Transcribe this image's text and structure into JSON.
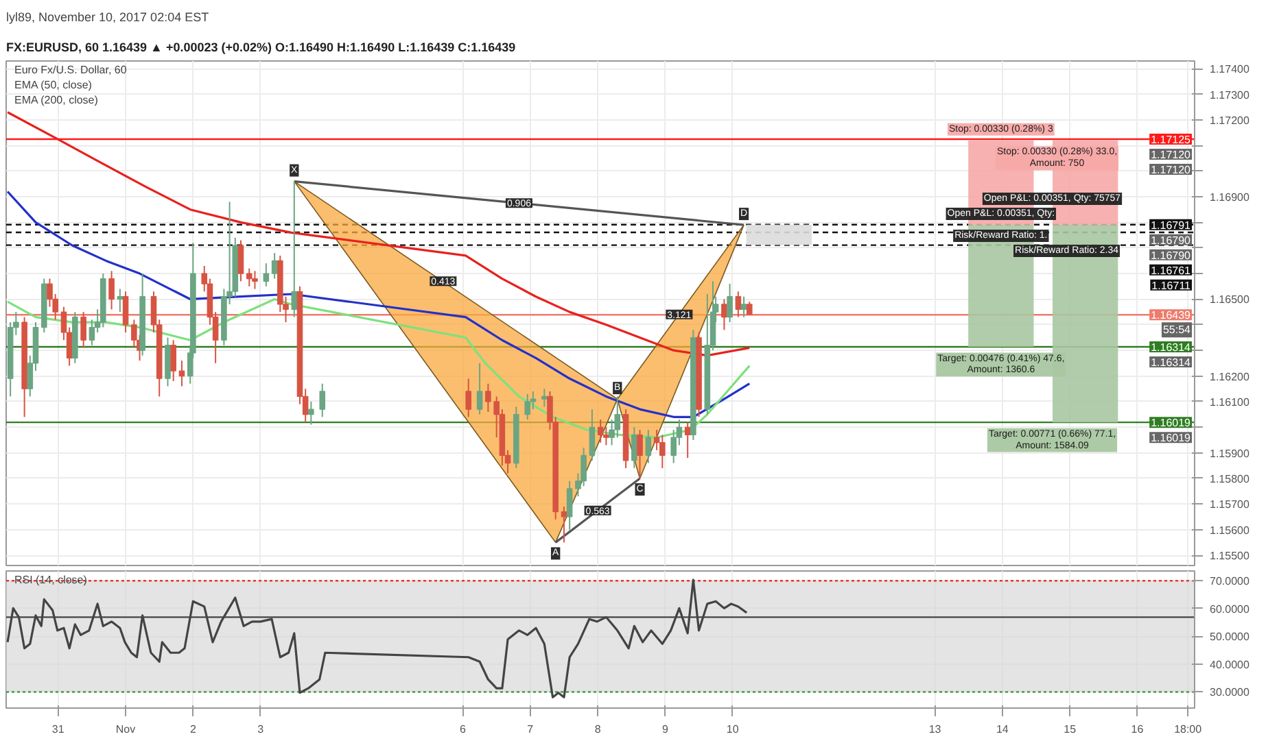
{
  "chart_data": [
    {
      "type": "candlestick",
      "title": "lyl89, November 10, 2017 02:04 EST",
      "subtitle": "FX:EURUSD, 60 1.16439 ▲ +0.00023 (+0.02%) O:1.16490 H:1.16490 L:1.16439 C:1.16439",
      "x": [
        "2017-10-30T07:00",
        "2017-10-30T09:00",
        "2017-10-30T12:00",
        "2017-10-30T14:00",
        "2017-10-30T16:00",
        "2017-10-30T19:00",
        "2017-10-30T21:00",
        "2017-10-30T23:00",
        "2017-10-31T02:00",
        "2017-10-31T04:00",
        "2017-10-31T06:00",
        "2017-10-31T09:00",
        "2017-10-31T12:00",
        "2017-10-31T14:00",
        "2017-10-31T16:00",
        "2017-10-31T19:00",
        "2017-10-31T22:00",
        "2017-11-01T00:00",
        "2017-11-01T03:00",
        "2017-11-01T05:00",
        "2017-11-01T06:00",
        "2017-11-01T10:00",
        "2017-11-01T12:00",
        "2017-11-01T15:00",
        "2017-11-01T17:00",
        "2017-11-01T20:00",
        "2017-11-01T23:00",
        "2017-11-02T00:00",
        "2017-11-02T04:00",
        "2017-11-02T06:00",
        "2017-11-02T08:00",
        "2017-11-02T11:00",
        "2017-11-02T13:00",
        "2017-11-02T15:00",
        "2017-11-02T17:00",
        "2017-11-02T20:00",
        "2017-11-02T22:00",
        "2017-11-03T02:00",
        "2017-11-03T05:00",
        "2017-11-03T07:00",
        "2017-11-03T09:00",
        "2017-11-03T12:00",
        "2017-11-03T14:00",
        "2017-11-03T16:00",
        "2017-11-03T18:00",
        "2017-11-03T22:00",
        "2017-11-06T02:00",
        "2017-11-06T06:00",
        "2017-11-06T09:00",
        "2017-11-06T12:00",
        "2017-11-06T14:00",
        "2017-11-06T16:00",
        "2017-11-06T19:00",
        "2017-11-06T23:00",
        "2017-11-07T01:00",
        "2017-11-07T05:00",
        "2017-11-07T07:00",
        "2017-11-07T09:00",
        "2017-11-07T12:00",
        "2017-11-07T14:00",
        "2017-11-07T17:00",
        "2017-11-07T19:00",
        "2017-11-07T22:00",
        "2017-11-08T01:00",
        "2017-11-08T03:00",
        "2017-11-08T05:00",
        "2017-11-08T07:00",
        "2017-11-08T10:00",
        "2017-11-08T13:00",
        "2017-11-08T15:00",
        "2017-11-08T18:00",
        "2017-11-08T21:00",
        "2017-11-08T23:00",
        "2017-11-09T03:00",
        "2017-11-09T05:00",
        "2017-11-09T08:00",
        "2017-11-09T10:00",
        "2017-11-09T12:00",
        "2017-11-09T15:00",
        "2017-11-09T17:00",
        "2017-11-09T18:00",
        "2017-11-09T21:00",
        "2017-11-09T23:00",
        "2017-11-10T02:00",
        "2017-11-10T04:00",
        "2017-11-10T06:00"
      ],
      "ohlc": [
        [
          1.1619,
          1.1641,
          1.1612,
          1.1639
        ],
        [
          1.1639,
          1.1645,
          1.1636,
          1.1641
        ],
        [
          1.1641,
          1.1643,
          1.1604,
          1.1615
        ],
        [
          1.1615,
          1.1628,
          1.1612,
          1.1625
        ],
        [
          1.1625,
          1.1641,
          1.1622,
          1.1639
        ],
        [
          1.1639,
          1.1658,
          1.1637,
          1.1656
        ],
        [
          1.1656,
          1.1658,
          1.1647,
          1.165
        ],
        [
          1.165,
          1.1652,
          1.1642,
          1.1645
        ],
        [
          1.1645,
          1.1647,
          1.1634,
          1.1637
        ],
        [
          1.1637,
          1.1639,
          1.1624,
          1.1627
        ],
        [
          1.1627,
          1.1645,
          1.1625,
          1.1643
        ],
        [
          1.1643,
          1.1645,
          1.1631,
          1.1634
        ],
        [
          1.1634,
          1.1642,
          1.1632,
          1.1639
        ],
        [
          1.1639,
          1.1646,
          1.1637,
          1.1641
        ],
        [
          1.1641,
          1.166,
          1.1639,
          1.1658
        ],
        [
          1.1658,
          1.1661,
          1.1646,
          1.165
        ],
        [
          1.165,
          1.1654,
          1.1645,
          1.1651
        ],
        [
          1.1651,
          1.1653,
          1.1637,
          1.164
        ],
        [
          1.164,
          1.1642,
          1.1631,
          1.1634
        ],
        [
          1.1634,
          1.1636,
          1.1626,
          1.163
        ],
        [
          1.163,
          1.166,
          1.1628,
          1.1651
        ],
        [
          1.1651,
          1.1653,
          1.1637,
          1.164
        ],
        [
          1.164,
          1.1642,
          1.1612,
          1.1619
        ],
        [
          1.1619,
          1.1635,
          1.1616,
          1.1632
        ],
        [
          1.1632,
          1.1634,
          1.1618,
          1.1622
        ],
        [
          1.1622,
          1.1626,
          1.1616,
          1.162
        ],
        [
          1.162,
          1.1632,
          1.1617,
          1.1629
        ],
        [
          1.1629,
          1.1672,
          1.1627,
          1.166
        ],
        [
          1.166,
          1.1663,
          1.1653,
          1.1656
        ],
        [
          1.1656,
          1.1658,
          1.164,
          1.1643
        ],
        [
          1.1643,
          1.1645,
          1.1625,
          1.1634
        ],
        [
          1.1634,
          1.1654,
          1.1632,
          1.1651
        ],
        [
          1.1651,
          1.1688,
          1.1648,
          1.1653
        ],
        [
          1.1653,
          1.1674,
          1.1651,
          1.1671
        ],
        [
          1.1671,
          1.1673,
          1.1657,
          1.166
        ],
        [
          1.166,
          1.1662,
          1.1655,
          1.1658
        ],
        [
          1.1658,
          1.1661,
          1.1654,
          1.1657
        ],
        [
          1.1657,
          1.1664,
          1.1655,
          1.166
        ],
        [
          1.166,
          1.1668,
          1.1658,
          1.1665
        ],
        [
          1.1665,
          1.1667,
          1.1645,
          1.1648
        ],
        [
          1.1648,
          1.1651,
          1.1641,
          1.1646
        ],
        [
          1.1646,
          1.1696,
          1.1643,
          1.1653
        ],
        [
          1.1653,
          1.1655,
          1.1609,
          1.1612
        ],
        [
          1.1612,
          1.1615,
          1.1602,
          1.1605
        ],
        [
          1.1605,
          1.161,
          1.1601,
          1.1607
        ],
        [
          1.1607,
          1.1617,
          1.1604,
          1.1614
        ],
        [
          1.1614,
          1.1619,
          1.1604,
          1.1607
        ],
        [
          1.1607,
          1.1625,
          1.1605,
          1.1614
        ],
        [
          1.1614,
          1.1617,
          1.1606,
          1.161
        ],
        [
          1.161,
          1.1612,
          1.1596,
          1.1605
        ],
        [
          1.1605,
          1.1607,
          1.1585,
          1.1589
        ],
        [
          1.1589,
          1.1591,
          1.1582,
          1.1586
        ],
        [
          1.1586,
          1.1608,
          1.1584,
          1.1605
        ],
        [
          1.1605,
          1.1613,
          1.1603,
          1.161
        ],
        [
          1.161,
          1.1614,
          1.1607,
          1.1611
        ],
        [
          1.1611,
          1.1615,
          1.1608,
          1.1612
        ],
        [
          1.1612,
          1.1614,
          1.1599,
          1.1602
        ],
        [
          1.1602,
          1.1604,
          1.1564,
          1.1567
        ],
        [
          1.1567,
          1.1569,
          1.1555,
          1.1565
        ],
        [
          1.1565,
          1.1579,
          1.156,
          1.1576
        ],
        [
          1.1576,
          1.1582,
          1.1573,
          1.1579
        ],
        [
          1.1579,
          1.1592,
          1.1577,
          1.1589
        ],
        [
          1.1589,
          1.1607,
          1.1587,
          1.16
        ],
        [
          1.16,
          1.1603,
          1.1594,
          1.1597
        ],
        [
          1.1597,
          1.16,
          1.1593,
          1.1596
        ],
        [
          1.1596,
          1.1603,
          1.1593,
          1.1599
        ],
        [
          1.1599,
          1.1612,
          1.1596,
          1.1605
        ],
        [
          1.1605,
          1.1607,
          1.1584,
          1.1587
        ],
        [
          1.1587,
          1.16,
          1.1584,
          1.1597
        ],
        [
          1.1597,
          1.1599,
          1.158,
          1.1589
        ],
        [
          1.1589,
          1.1599,
          1.1586,
          1.1596
        ],
        [
          1.1596,
          1.1599,
          1.1591,
          1.1594
        ],
        [
          1.1594,
          1.1597,
          1.1584,
          1.1589
        ],
        [
          1.1589,
          1.1599,
          1.1586,
          1.1596
        ],
        [
          1.1596,
          1.1603,
          1.1593,
          1.16
        ],
        [
          1.16,
          1.1602,
          1.1588,
          1.1597
        ],
        [
          1.1597,
          1.1638,
          1.1595,
          1.1635
        ],
        [
          1.1635,
          1.1637,
          1.1604,
          1.1607
        ],
        [
          1.1607,
          1.1652,
          1.1605,
          1.1632
        ],
        [
          1.1632,
          1.1657,
          1.163,
          1.1645
        ],
        [
          1.1645,
          1.1651,
          1.1641,
          1.1648
        ],
        [
          1.1648,
          1.165,
          1.1638,
          1.1643
        ],
        [
          1.1643,
          1.1656,
          1.1641,
          1.1651
        ],
        [
          1.1651,
          1.1653,
          1.1643,
          1.1646
        ],
        [
          1.1646,
          1.1651,
          1.1643,
          1.1648
        ],
        [
          1.1648,
          1.1649,
          1.1644,
          1.1644
        ]
      ],
      "colors": [
        "#6ba583",
        "#6ba583",
        "#d75442",
        "#6ba583",
        "#6ba583",
        "#6ba583",
        "#d75442",
        "#d75442",
        "#d75442",
        "#d75442",
        "#6ba583",
        "#d75442",
        "#6ba583",
        "#6ba583",
        "#6ba583",
        "#d75442",
        "#6ba583",
        "#d75442",
        "#d75442",
        "#d75442",
        "#6ba583",
        "#d75442",
        "#d75442",
        "#6ba583",
        "#d75442",
        "#d75442",
        "#6ba583",
        "#6ba583",
        "#d75442",
        "#d75442",
        "#d75442",
        "#6ba583",
        "#6ba583",
        "#6ba583",
        "#d75442",
        "#d75442",
        "#d75442",
        "#6ba583",
        "#6ba583",
        "#d75442",
        "#d75442",
        "#6ba583",
        "#d75442",
        "#d75442",
        "#6ba583",
        "#6ba583",
        "#d75442",
        "#6ba583",
        "#d75442",
        "#d75442",
        "#d75442",
        "#d75442",
        "#6ba583",
        "#6ba583",
        "#6ba583",
        "#6ba583",
        "#d75442",
        "#d75442",
        "#d75442",
        "#6ba583",
        "#6ba583",
        "#6ba583",
        "#6ba583",
        "#d75442",
        "#d75442",
        "#6ba583",
        "#6ba583",
        "#d75442",
        "#6ba583",
        "#d75442",
        "#6ba583",
        "#d75442",
        "#d75442",
        "#6ba583",
        "#6ba583",
        "#d75442",
        "#6ba583",
        "#d75442",
        "#6ba583",
        "#6ba583",
        "#6ba583",
        "#d75442",
        "#6ba583",
        "#d75442",
        "#6ba583",
        "#d75442"
      ],
      "series": [
        {
          "type": "bar",
          "color": "#f7a9a8",
          "x": [
            "2017-11-13T23:30",
            "2017-11-15T05:30"
          ],
          "base": [
            1.1679,
            1.1679
          ],
          "values": [
            0.0033,
            0.0033
          ],
          "value_labels": [
            "Stop: 0.00330 (0.28%) 3",
            "Stop: 0.00330 (0.28%) 33.0, Amount: 750"
          ]
        },
        {
          "type": "bar",
          "color": "#a9c7a1",
          "x": [
            "2017-11-13T23:30",
            "2017-11-15T05:30"
          ],
          "base": [
            1.16314,
            1.16019
          ],
          "values": [
            0.00476,
            0.00771
          ],
          "value_labels": [
            "Target: 0.00476 (0.41%) 47.6, Amount: 1360.6",
            "Target: 0.00771 (0.66%) 77.1, Amount: 1584.09"
          ]
        },
        {
          "type": "bar",
          "color": "#dcdcdc",
          "x": [
            "2017-11-10T16:30"
          ],
          "base": [
            1.16711
          ],
          "values": [
            0.0008
          ]
        },
        {
          "type": "area",
          "color": "#f9a83e",
          "x": [
            "2017-11-03T12:00",
            "2017-11-07T09:00",
            "2017-11-08T07:00"
          ],
          "values": [
            1.1696,
            1.1555,
            1.1611
          ]
        },
        {
          "type": "area",
          "color": "#f9a83e",
          "x": [
            "2017-11-08T07:00",
            "2017-11-08T15:00",
            "2017-11-10T04:00"
          ],
          "values": [
            1.1611,
            1.158,
            1.1679
          ]
        },
        {
          "type": "line",
          "color": "#555555",
          "x": [
            "2017-11-03T12:00",
            "2017-11-10T04:00"
          ],
          "values": [
            1.1696,
            1.1679
          ]
        },
        {
          "type": "line",
          "color": "#555555",
          "x": [
            "2017-11-07T09:00",
            "2017-11-08T15:00"
          ],
          "values": [
            1.1555,
            1.158
          ]
        },
        {
          "type": "line",
          "color": "#e8211d",
          "x": [
            "2017-10-30T06:00",
            "2017-10-30T23:00",
            "2017-10-31T14:00",
            "2017-11-01T07:00",
            "2017-11-01T23:00",
            "2017-11-02T17:00",
            "2017-11-03T11:00",
            "2017-11-06T01:00",
            "2017-11-06T14:00",
            "2017-11-07T02:00",
            "2017-11-07T14:00",
            "2017-11-08T03:00",
            "2017-11-08T15:00",
            "2017-11-09T03:00",
            "2017-11-09T15:00",
            "2017-11-10T06:00"
          ],
          "values": [
            1.1723,
            1.1713,
            1.1704,
            1.1694,
            1.1685,
            1.168,
            1.1676,
            1.1667,
            1.1658,
            1.1651,
            1.1645,
            1.164,
            1.1635,
            1.163,
            1.1628,
            1.1631
          ]
        },
        {
          "type": "line",
          "color": "#2231c9",
          "x": [
            "2017-10-30T06:00",
            "2017-10-30T16:00",
            "2017-10-31T05:00",
            "2017-10-31T17:00",
            "2017-11-01T05:00",
            "2017-11-01T23:00",
            "2017-11-02T17:00",
            "2017-11-03T11:00",
            "2017-11-06T01:00",
            "2017-11-06T14:00",
            "2017-11-07T02:00",
            "2017-11-07T14:00",
            "2017-11-08T03:00",
            "2017-11-08T15:00",
            "2017-11-09T03:00",
            "2017-11-09T10:00",
            "2017-11-09T21:00",
            "2017-11-10T06:00"
          ],
          "values": [
            1.1692,
            1.168,
            1.1671,
            1.1665,
            1.166,
            1.165,
            1.1651,
            1.1652,
            1.1643,
            1.1634,
            1.1627,
            1.1619,
            1.1612,
            1.1607,
            1.1604,
            1.1604,
            1.1611,
            1.1617
          ]
        },
        {
          "type": "line",
          "color": "#7ee07e",
          "x": [
            "2017-10-30T06:00",
            "2017-10-30T16:00",
            "2017-10-31T05:00",
            "2017-10-31T17:00",
            "2017-11-01T05:00",
            "2017-11-01T23:00",
            "2017-11-02T11:00",
            "2017-11-03T05:00",
            "2017-11-03T11:00",
            "2017-11-06T01:00",
            "2017-11-06T08:00",
            "2017-11-06T20:00",
            "2017-11-07T08:00",
            "2017-11-07T20:00",
            "2017-11-08T08:00",
            "2017-11-08T21:00",
            "2017-11-09T09:00",
            "2017-11-09T15:00",
            "2017-11-10T06:00"
          ],
          "values": [
            1.1649,
            1.1643,
            1.1641,
            1.1641,
            1.1639,
            1.1634,
            1.1641,
            1.165,
            1.1648,
            1.1635,
            1.1625,
            1.1612,
            1.1604,
            1.1599,
            1.1597,
            1.1596,
            1.1599,
            1.1605,
            1.1624
          ]
        }
      ],
      "xlim": [
        "2017-10-30T05:30",
        "2017-11-16T20:24"
      ],
      "ylim": [
        1.1546,
        1.1743
      ],
      "xticks": [
        {
          "value": "2017-10-31",
          "label": "31"
        },
        {
          "value": "2017-11-01",
          "label": "Nov"
        },
        {
          "value": "2017-11-02",
          "label": "2"
        },
        {
          "value": "2017-11-03",
          "label": "3"
        },
        {
          "value": "2017-11-06",
          "label": "6"
        },
        {
          "value": "2017-11-07",
          "label": "7"
        },
        {
          "value": "2017-11-08",
          "label": "8"
        },
        {
          "value": "2017-11-09",
          "label": "9"
        },
        {
          "value": "2017-11-10",
          "label": "10"
        },
        {
          "value": "2017-11-13",
          "label": "13"
        },
        {
          "value": "2017-11-14",
          "label": "14"
        },
        {
          "value": "2017-11-15",
          "label": "15"
        },
        {
          "value": "2017-11-16",
          "label": "16"
        },
        {
          "value": "2017-11-16T18:00",
          "label": "18:00"
        }
      ],
      "yticks": [
        {
          "value": 1.155,
          "label": "1.15500"
        },
        {
          "value": 1.156,
          "label": "1.15600"
        },
        {
          "value": 1.157,
          "label": "1.15700"
        },
        {
          "value": 1.158,
          "label": "1.15800"
        },
        {
          "value": 1.159,
          "label": "1.15900"
        },
        {
          "value": 1.16,
          "label": null
        },
        {
          "value": 1.161,
          "label": "1.16100"
        },
        {
          "value": 1.162,
          "label": "1.16200"
        },
        {
          "value": 1.163,
          "label": null
        },
        {
          "value": 1.164,
          "label": null
        },
        {
          "value": 1.165,
          "label": "1.16500"
        },
        {
          "value": 1.166,
          "label": null
        },
        {
          "value": 1.167,
          "label": null
        },
        {
          "value": 1.168,
          "label": null
        },
        {
          "value": 1.169,
          "label": "1.16900"
        },
        {
          "value": 1.17,
          "label": null
        },
        {
          "value": 1.171,
          "label": null
        },
        {
          "value": 1.172,
          "label": "1.17200"
        },
        {
          "value": 1.173,
          "label": "1.17300"
        },
        {
          "value": 1.174,
          "label": "1.17400"
        }
      ],
      "tick_labels": "y",
      "grid": true,
      "ref_lines": [
        {
          "axis": "y",
          "value": 1.17125,
          "label": "1.17125",
          "color": "#ff1a1a",
          "line_style": "solid"
        },
        {
          "axis": "y",
          "value": 1.16791,
          "label": "1.16791",
          "color": "#111111",
          "line_style": "dashed"
        },
        {
          "axis": "y",
          "value": 1.16761,
          "label": "1.16761",
          "color": "#111111",
          "line_style": "dashed"
        },
        {
          "axis": "y",
          "value": 1.16711,
          "label": "1.16711",
          "color": "#111111",
          "line_style": "dashed"
        },
        {
          "axis": "y",
          "value": 1.16439,
          "label": "1.16439",
          "color": "#ee7b6c",
          "line_style": "solid"
        },
        {
          "axis": "y",
          "value": 1.16314,
          "label": "1.16314",
          "color": "#2f7d22",
          "line_style": "solid"
        },
        {
          "axis": "y",
          "value": 1.16019,
          "label": "1.16019",
          "color": "#2f7d22",
          "line_style": "solid"
        }
      ],
      "annotations": [
        "Euro Fx/U.S. Dollar, 60",
        "EMA (50, close)",
        "EMA (200, close)",
        {
          "text": "1.17120",
          "y": 1.1712
        },
        {
          "text": "1.17120",
          "y": 1.1712
        },
        {
          "text": "1.16790",
          "y": 1.1679
        },
        {
          "text": "1.16790",
          "y": 1.1679
        },
        {
          "text": "55:54",
          "y": 1.16439
        },
        {
          "text": "1.16314",
          "y": 1.16314
        },
        {
          "text": "1.16019",
          "y": 1.16019
        },
        {
          "text": "X",
          "x": "2017-11-03T12:00",
          "y": 1.1696
        },
        {
          "text": "A",
          "x": "2017-11-07T09:00",
          "y": 1.1555
        },
        {
          "text": "B",
          "x": "2017-11-08T07:00",
          "y": 1.1611
        },
        {
          "text": "C",
          "x": "2017-11-08T15:00",
          "y": 1.158
        },
        {
          "text": "D",
          "x": "2017-11-10T04:00",
          "y": 1.1679
        },
        {
          "text": "0.906",
          "x": "2017-11-06T20:00",
          "y": 1.16875
        },
        {
          "text": "0.413",
          "x": "2017-11-05T17:00",
          "y": 1.1657
        },
        {
          "text": "3.121",
          "x": "2017-11-09T05:00",
          "y": 1.1644
        },
        {
          "text": "0.563",
          "x": "2017-11-08T00:00",
          "y": 1.15675
        },
        {
          "text": "Open P&L: 0.00351, Qty:",
          "x": "2017-11-13T23:30",
          "y": 1.1679
        },
        {
          "text": "Risk/Reward Ratio: 1.",
          "x": "2017-11-13T23:30",
          "y": 1.1679
        },
        {
          "text": "Open P&L: 0.00351, Qty: 75757",
          "x": "2017-11-15T05:30",
          "y": 1.1679
        },
        {
          "text": "Risk/Reward Ratio: 2.34",
          "x": "2017-11-15T05:30",
          "y": 1.1679
        }
      ]
    },
    {
      "type": "line",
      "title": "RSI (14, close)",
      "color": "#444444",
      "x": [
        "2017-10-30T06:00",
        "2017-10-30T08:00",
        "2017-10-30T10:00",
        "2017-10-30T12:00",
        "2017-10-30T14:00",
        "2017-10-30T16:00",
        "2017-10-30T18:00",
        "2017-10-30T19:00",
        "2017-10-30T22:00",
        "2017-10-30T23:45",
        "2017-10-31T02:00",
        "2017-10-31T04:00",
        "2017-10-31T06:00",
        "2017-10-31T08:00",
        "2017-10-31T11:00",
        "2017-10-31T14:00",
        "2017-10-31T16:00",
        "2017-10-31T19:00",
        "2017-10-31T22:00",
        "2017-10-31T23:45",
        "2017-11-01T02:00",
        "2017-11-01T04:00",
        "2017-11-01T06:00",
        "2017-11-01T09:00",
        "2017-11-01T12:00",
        "2017-11-01T13:00",
        "2017-11-01T16:00",
        "2017-11-01T19:00",
        "2017-11-01T21:00",
        "2017-11-02T00:00",
        "2017-11-02T04:00",
        "2017-11-02T07:00",
        "2017-11-02T10:00",
        "2017-11-02T15:00",
        "2017-11-02T18:00",
        "2017-11-02T21:00",
        "2017-11-03T00:00",
        "2017-11-03T04:00",
        "2017-11-03T07:00",
        "2017-11-03T10:00",
        "2017-11-03T12:00",
        "2017-11-03T14:00",
        "2017-11-03T17:00",
        "2017-11-03T19:00",
        "2017-11-03T21:00",
        "2017-11-03T23:00",
        "2017-11-06T02:00",
        "2017-11-06T06:00",
        "2017-11-06T09:00",
        "2017-11-06T12:00",
        "2017-11-06T14:00",
        "2017-11-06T16:00",
        "2017-11-06T20:00",
        "2017-11-06T23:00",
        "2017-11-07T02:00",
        "2017-11-07T05:00",
        "2017-11-07T08:00",
        "2017-11-07T10:00",
        "2017-11-07T12:00",
        "2017-11-07T14:00",
        "2017-11-07T17:00",
        "2017-11-07T21:00",
        "2017-11-07T23:45",
        "2017-11-08T03:00",
        "2017-11-08T07:00",
        "2017-11-08T11:00",
        "2017-11-08T13:00",
        "2017-11-08T16:00",
        "2017-11-08T19:00",
        "2017-11-08T23:00",
        "2017-11-09T02:00",
        "2017-11-09T05:00",
        "2017-11-09T08:00",
        "2017-11-09T10:00",
        "2017-11-09T12:00",
        "2017-11-09T15:00",
        "2017-11-09T18:00",
        "2017-11-09T21:00",
        "2017-11-09T23:30",
        "2017-11-10T02:00",
        "2017-11-10T05:00"
      ],
      "values": [
        47.9,
        60.1,
        56.9,
        45.7,
        47.3,
        57.5,
        53.7,
        63.3,
        59.4,
        52.1,
        53.0,
        45.7,
        54.3,
        50.5,
        52.1,
        61.7,
        53.7,
        55.3,
        53.0,
        47.9,
        44.1,
        42.5,
        57.5,
        44.1,
        40.9,
        47.9,
        44.1,
        44.1,
        45.7,
        62.6,
        60.7,
        47.9,
        55.3,
        63.9,
        53.7,
        55.3,
        55.3,
        56.2,
        42.5,
        44.1,
        51.1,
        29.7,
        31.3,
        32.9,
        34.5,
        44.1,
        42.5,
        40.9,
        34.5,
        31.3,
        31.3,
        48.9,
        52.1,
        50.5,
        53.0,
        47.3,
        28.1,
        29.7,
        28.1,
        42.5,
        47.3,
        56.2,
        55.3,
        56.9,
        52.1,
        45.7,
        53.7,
        47.9,
        52.1,
        47.3,
        52.1,
        60.1,
        51.1,
        70.3,
        52.1,
        61.7,
        62.6,
        60.1,
        61.7,
        60.7,
        58.5
      ],
      "xlim": [
        "2017-10-30T05:30",
        "2017-11-16T20:24"
      ],
      "ylim": [
        24.2,
        73.5
      ],
      "xticks": [
        {
          "value": "2017-10-31",
          "label": "31"
        },
        {
          "value": "2017-11-01",
          "label": "Nov"
        },
        {
          "value": "2017-11-02",
          "label": "2"
        },
        {
          "value": "2017-11-03",
          "label": "3"
        },
        {
          "value": "2017-11-06",
          "label": "6"
        },
        {
          "value": "2017-11-07",
          "label": "7"
        },
        {
          "value": "2017-11-08",
          "label": "8"
        },
        {
          "value": "2017-11-09",
          "label": "9"
        },
        {
          "value": "2017-11-10",
          "label": "10"
        },
        {
          "value": "2017-11-13",
          "label": "13"
        },
        {
          "value": "2017-11-14",
          "label": "14"
        },
        {
          "value": "2017-11-15",
          "label": "15"
        },
        {
          "value": "2017-11-16",
          "label": "16"
        },
        {
          "value": "2017-11-16T18:00",
          "label": "18:00"
        }
      ],
      "yticks": [
        {
          "value": 30,
          "label": "30.0000"
        },
        {
          "value": 40,
          "label": "40.0000"
        },
        {
          "value": 50,
          "label": "50.0000"
        },
        {
          "value": 60,
          "label": "60.0000"
        },
        {
          "value": 70,
          "label": "70.0000"
        }
      ],
      "grid": true,
      "ref_lines": [
        {
          "axis": "y",
          "value": 70,
          "color": "#e53935",
          "line_style": "dotted"
        },
        {
          "axis": "y",
          "value": 30,
          "color": "#43a047",
          "line_style": "dotted"
        },
        {
          "axis": "y",
          "value": 56.9,
          "color": "#444444",
          "line_style": "solid"
        }
      ],
      "bands": [
        {
          "axis": "y",
          "from": 30,
          "to": 70,
          "color": "#d9d9d9"
        }
      ]
    }
  ]
}
